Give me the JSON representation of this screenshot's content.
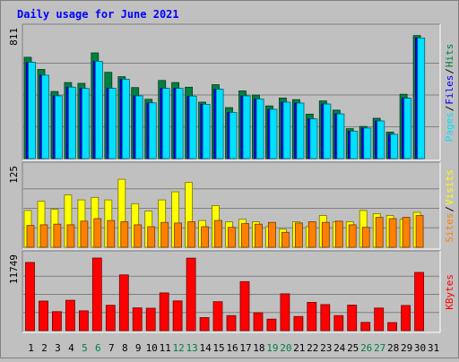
{
  "chart_data": {
    "type": "bar",
    "title": "Daily usage for June 2021",
    "categories": [
      "1",
      "2",
      "3",
      "4",
      "5",
      "6",
      "7",
      "8",
      "9",
      "10",
      "11",
      "12",
      "13",
      "14",
      "15",
      "16",
      "17",
      "18",
      "19",
      "20",
      "21",
      "22",
      "23",
      "24",
      "25",
      "26",
      "27",
      "28",
      "29",
      "30",
      "31"
    ],
    "weekend_days": [
      "5",
      "6",
      "12",
      "13",
      "19",
      "20",
      "26",
      "27"
    ],
    "panels": [
      {
        "id": "hits-files-pages",
        "ymax_label": "811",
        "ymax": 811,
        "legend": [
          "Pages",
          "/",
          "Files",
          "/",
          "Hits"
        ],
        "series": [
          {
            "name": "Hits",
            "color": "#008040",
            "values": [
              646,
              568,
              428,
              485,
              480,
              674,
              550,
              522,
              453,
              378,
              498,
              485,
              455,
              360,
              471,
              325,
              432,
              405,
              336,
              386,
              376,
              283,
              368,
              309,
              191,
              205,
              257,
              169,
              410,
              784,
              0
            ]
          },
          {
            "name": "Files",
            "color": "#0000ff",
            "values": [
              614,
              532,
              400,
              455,
              447,
              620,
              448,
              506,
              400,
              355,
              448,
              448,
              398,
              346,
              442,
              294,
              400,
              380,
              314,
              360,
              354,
              253,
              348,
              285,
              175,
              195,
              240,
              155,
              385,
              769,
              0
            ]
          },
          {
            "name": "Pages",
            "color": "#00e0ff",
            "values": [
              614,
              532,
              400,
              455,
              447,
              620,
              448,
              506,
              400,
              355,
              448,
              448,
              398,
              346,
              442,
              294,
              400,
              380,
              314,
              360,
              354,
              253,
              348,
              285,
              175,
              195,
              240,
              155,
              385,
              769,
              0
            ]
          }
        ]
      },
      {
        "id": "visits-sites",
        "ymax_label": "125",
        "ymax": 125,
        "legend": [
          "Sites",
          "/",
          "Visits"
        ],
        "series": [
          {
            "name": "Visits",
            "color": "#ffff00",
            "values": [
              59,
              74,
              61,
              84,
              76,
              80,
              76,
              109,
              70,
              58,
              76,
              89,
              104,
              43,
              67,
              41,
              45,
              41,
              33,
              29,
              41,
              33,
              51,
              41,
              41,
              59,
              54,
              51,
              45,
              56,
              0
            ]
          },
          {
            "name": "Sites",
            "color": "#ff8000",
            "values": [
              35,
              36,
              37,
              36,
              42,
              46,
              43,
              41,
              36,
              33,
              40,
              39,
              41,
              33,
              43,
              32,
              38,
              37,
              40,
              24,
              39,
              41,
              40,
              42,
              36,
              32,
              48,
              46,
              48,
              51,
              0
            ]
          }
        ]
      },
      {
        "id": "kbytes",
        "ymax_label": "11749",
        "ymax": 11749,
        "legend": [
          "KBytes"
        ],
        "series": [
          {
            "name": "KBytes",
            "color": "#ff0000",
            "values": [
              11040,
              4780,
              3070,
              4910,
              3210,
              11749,
              4100,
              9020,
              3680,
              3620,
              6110,
              4810,
              11740,
              2120,
              4680,
              2430,
              7930,
              2890,
              1850,
              5960,
              2290,
              4580,
              4220,
              2440,
              4140,
              1340,
              3660,
              1310,
              4080,
              9430,
              0
            ]
          }
        ]
      }
    ]
  }
}
